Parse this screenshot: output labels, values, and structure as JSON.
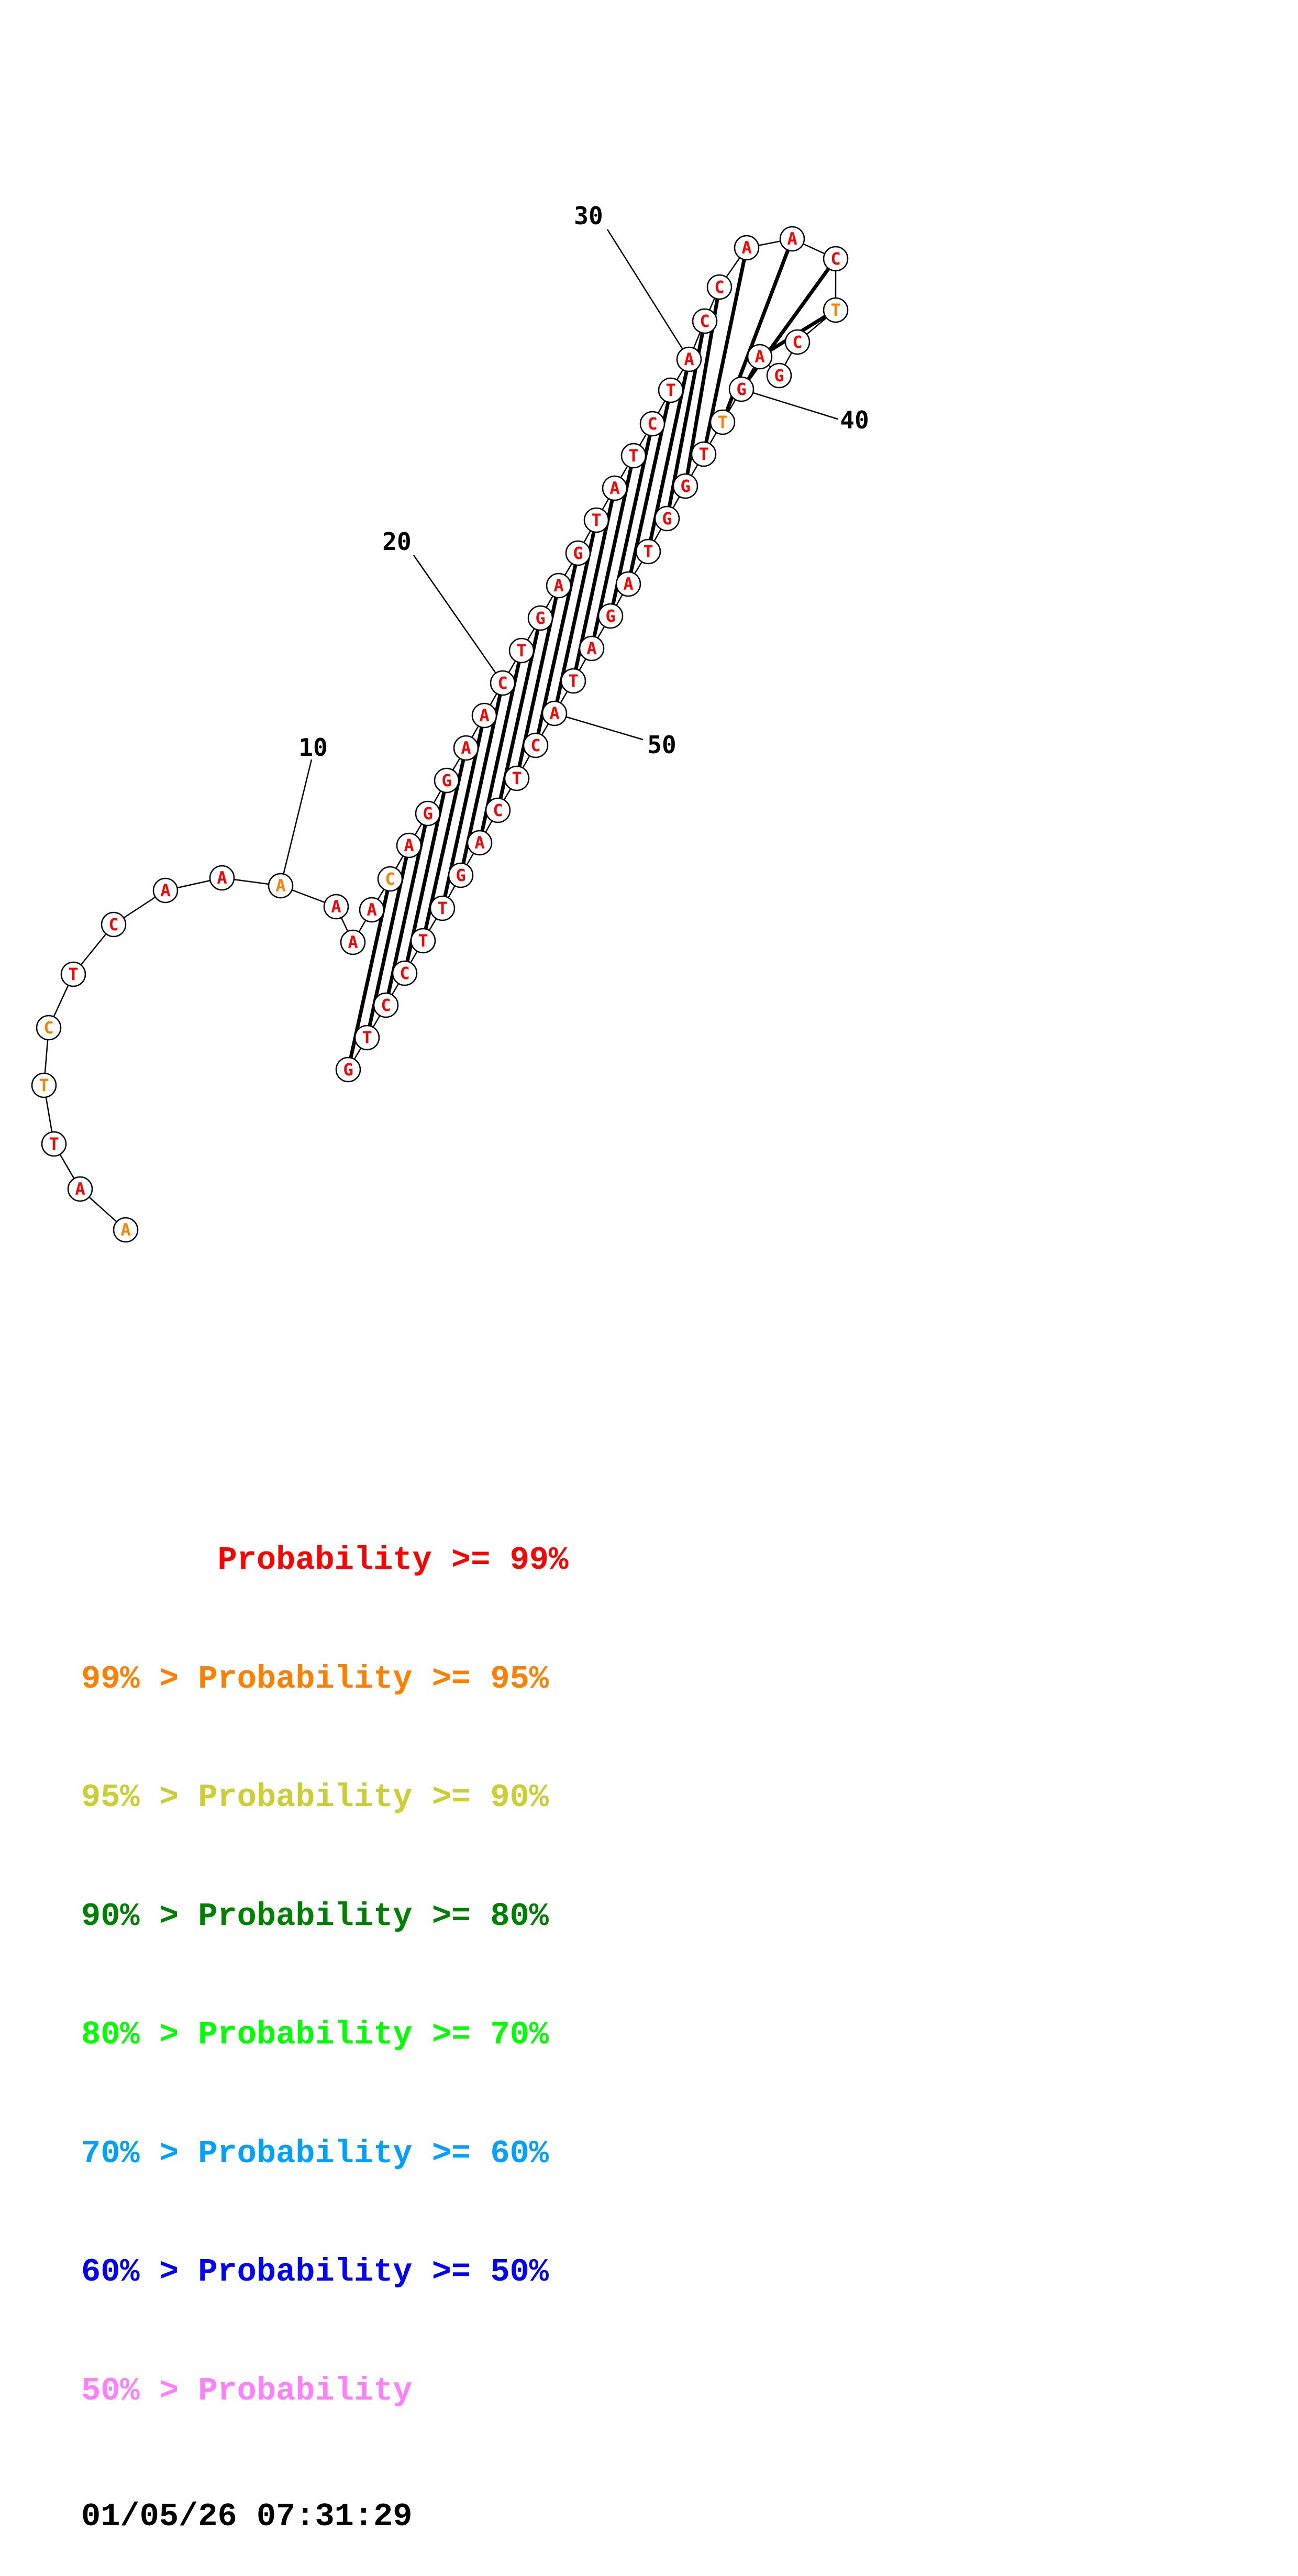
{
  "sequence": "AATTCTCAAAAAACAGGAACTGAGTATCTACCAACTCGAGTTGGTAGATACTCAGTTCCTG",
  "base_pairs": [
    [
      14,
      61
    ],
    [
      15,
      60
    ],
    [
      16,
      59
    ],
    [
      17,
      58
    ],
    [
      18,
      57
    ],
    [
      19,
      56
    ],
    [
      20,
      55
    ],
    [
      21,
      54
    ],
    [
      22,
      53
    ],
    [
      23,
      52
    ],
    [
      24,
      51
    ],
    [
      25,
      50
    ],
    [
      26,
      49
    ],
    [
      27,
      48
    ],
    [
      28,
      47
    ],
    [
      29,
      46
    ],
    [
      30,
      45
    ],
    [
      31,
      44
    ],
    [
      32,
      43
    ],
    [
      33,
      42
    ],
    [
      34,
      41
    ],
    [
      35,
      40
    ],
    [
      36,
      39
    ]
  ],
  "probability_colors": [
    "#ff0000",
    "#ff8000",
    "#cccc33",
    "#008000",
    "#00ff00",
    "#00a0ff",
    "#0000ff",
    "#ff80ff"
  ],
  "nucleotide_color_class": [
    1,
    0,
    0,
    1,
    1,
    0,
    0,
    0,
    0,
    1,
    0,
    0,
    0,
    1,
    0,
    0,
    0,
    0,
    0,
    0,
    0,
    0,
    0,
    0,
    0,
    0,
    0,
    0,
    0,
    0,
    0,
    0,
    0,
    0,
    0,
    1,
    0,
    0,
    0,
    0,
    1,
    0,
    0,
    0,
    0,
    0,
    0,
    0,
    0,
    0,
    0,
    0,
    0,
    0,
    0,
    0,
    0,
    0,
    0,
    0,
    0
  ],
  "position_labels": [
    {
      "n": 10,
      "text": "10"
    },
    {
      "n": 20,
      "text": "20"
    },
    {
      "n": 30,
      "text": "30"
    },
    {
      "n": 40,
      "text": "40"
    },
    {
      "n": 50,
      "text": "50"
    }
  ],
  "legend": {
    "rows": [
      {
        "text": "       Probability >= 99%",
        "color": "#ff0000"
      },
      {
        "text": "99% > Probability >= 95%",
        "color": "#ff8000"
      },
      {
        "text": "95% > Probability >= 90%",
        "color": "#cccc33"
      },
      {
        "text": "90% > Probability >= 80%",
        "color": "#008000"
      },
      {
        "text": "80% > Probability >= 70%",
        "color": "#00ff00"
      },
      {
        "text": "70% > Probability >= 60%",
        "color": "#00a0ff"
      },
      {
        "text": "60% > Probability >= 50%",
        "color": "#0000ff"
      },
      {
        "text": "50% > Probability",
        "color": "#ff80ff"
      }
    ],
    "timestamp": "01/05/26 07:31:29"
  }
}
